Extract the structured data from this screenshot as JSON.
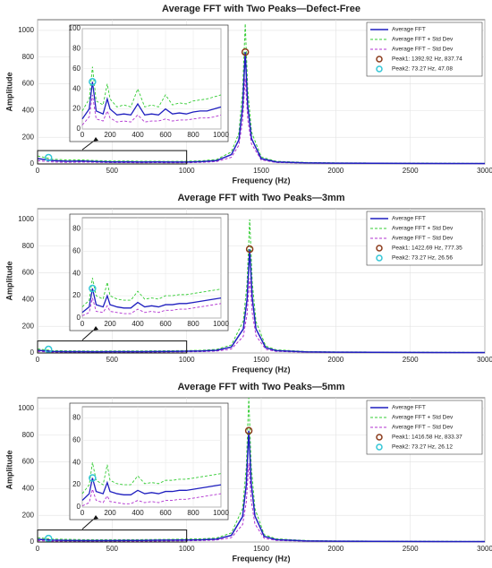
{
  "chart_data": [
    {
      "type": "line",
      "title": "Average FFT with Two Peaks—Defect-Free",
      "xlabel": "Frequency (Hz)",
      "ylabel": "Amplitude",
      "xlim": [
        0,
        3000
      ],
      "ylim": [
        0,
        1080
      ],
      "xticks": [
        0,
        500,
        1000,
        1500,
        2000,
        2500,
        3000
      ],
      "yticks": [
        0,
        200,
        400,
        600,
        800,
        1000
      ],
      "grid": true,
      "x": [
        0,
        100,
        200,
        300,
        400,
        500,
        600,
        700,
        800,
        900,
        1000,
        1100,
        1200,
        1300,
        1350,
        1375,
        1392.92,
        1410,
        1435,
        1500,
        1600,
        1800,
        2000,
        2500,
        3000
      ],
      "series": [
        {
          "name": "Average FFT",
          "color": "#1f1fbf",
          "style": "solid",
          "values": [
            40,
            25,
            20,
            22,
            18,
            15,
            16,
            14,
            15,
            14,
            14,
            18,
            25,
            70,
            180,
            420,
            837.74,
            430,
            190,
            40,
            15,
            8,
            6,
            4,
            3
          ]
        },
        {
          "name": "Average FFT + Std Dev",
          "color": "#33cc33",
          "style": "dashed",
          "values": [
            60,
            35,
            30,
            30,
            25,
            22,
            22,
            20,
            20,
            19,
            20,
            24,
            33,
            90,
            230,
            540,
            1050,
            550,
            240,
            52,
            20,
            11,
            8,
            6,
            4
          ]
        },
        {
          "name": "Average FFT − Std Dev",
          "color": "#b030d0",
          "style": "dashed",
          "values": [
            25,
            15,
            12,
            14,
            12,
            10,
            10,
            9,
            10,
            9,
            9,
            12,
            18,
            50,
            140,
            320,
            640,
            330,
            150,
            30,
            11,
            6,
            4,
            3,
            2
          ]
        }
      ],
      "peaks": [
        {
          "name": "Peak1: 1392.92 Hz, 837.74",
          "color": "#8b3a1a",
          "x": 1392.92,
          "value": 837.74
        },
        {
          "name": "Peak2: 73.27 Hz, 47.08",
          "color": "#33c6d6",
          "x": 73.27,
          "value": 47.08
        }
      ],
      "inset": {
        "xlim": [
          0,
          1000
        ],
        "ylim": [
          0,
          100
        ],
        "xticks": [
          0,
          200,
          400,
          600,
          800,
          1000
        ],
        "yticks": [
          0,
          20,
          40,
          60,
          80,
          100
        ],
        "x": [
          0,
          50,
          73.27,
          100,
          150,
          180,
          200,
          250,
          300,
          350,
          400,
          450,
          500,
          550,
          600,
          650,
          700,
          750,
          800,
          850,
          900,
          950,
          1000
        ],
        "series": [
          {
            "values": [
              10,
              20,
              47.08,
              18,
              15,
              30,
              20,
              14,
              15,
              14,
              25,
              14,
              15,
              14,
              20,
              15,
              16,
              15,
              17,
              18,
              18,
              20,
              22
            ]
          },
          {
            "values": [
              18,
              30,
              62,
              28,
              24,
              45,
              30,
              22,
              24,
              22,
              40,
              22,
              24,
              22,
              34,
              24,
              26,
              25,
              28,
              29,
              30,
              32,
              34
            ]
          },
          {
            "values": [
              4,
              12,
              34,
              10,
              8,
              18,
              11,
              7,
              8,
              7,
              14,
              7,
              8,
              8,
              10,
              8,
              9,
              9,
              10,
              11,
              11,
              12,
              14
            ]
          }
        ]
      }
    },
    {
      "type": "line",
      "title": "Average FFT with Two Peaks—3mm",
      "xlabel": "Frequency (Hz)",
      "ylabel": "Amplitude",
      "xlim": [
        0,
        3000
      ],
      "ylim": [
        0,
        1080
      ],
      "xticks": [
        0,
        500,
        1000,
        1500,
        2000,
        2500,
        3000
      ],
      "yticks": [
        0,
        200,
        400,
        600,
        800,
        1000
      ],
      "grid": true,
      "x": [
        0,
        100,
        200,
        300,
        400,
        500,
        600,
        700,
        800,
        900,
        1000,
        1100,
        1200,
        1300,
        1380,
        1405,
        1422.69,
        1440,
        1465,
        1530,
        1600,
        1800,
        2000,
        2500,
        3000
      ],
      "series": [
        {
          "name": "Average FFT",
          "color": "#1f1fbf",
          "style": "solid",
          "values": [
            20,
            12,
            10,
            10,
            9,
            10,
            10,
            10,
            11,
            12,
            13,
            15,
            20,
            45,
            180,
            400,
            777.35,
            410,
            180,
            40,
            18,
            8,
            6,
            4,
            3
          ]
        },
        {
          "name": "Average FFT + Std Dev",
          "color": "#33cc33",
          "style": "dashed",
          "values": [
            30,
            18,
            16,
            15,
            14,
            15,
            15,
            15,
            16,
            17,
            18,
            20,
            27,
            60,
            240,
            520,
            1000,
            530,
            235,
            52,
            24,
            11,
            8,
            6,
            4
          ]
        },
        {
          "name": "Average FFT − Std Dev",
          "color": "#b030d0",
          "style": "dashed",
          "values": [
            12,
            7,
            6,
            6,
            5,
            6,
            6,
            6,
            7,
            8,
            9,
            10,
            14,
            30,
            125,
            290,
            560,
            300,
            130,
            28,
            12,
            5,
            4,
            3,
            2
          ]
        }
      ],
      "peaks": [
        {
          "name": "Peak1: 1422.69 Hz, 777.35",
          "color": "#8b3a1a",
          "x": 1422.69,
          "value": 777.35
        },
        {
          "name": "Peak2: 73.27 Hz, 26.56",
          "color": "#33c6d6",
          "x": 73.27,
          "value": 26.56
        }
      ],
      "inset": {
        "xlim": [
          0,
          1000
        ],
        "ylim": [
          0,
          90
        ],
        "xticks": [
          0,
          200,
          400,
          600,
          800,
          1000
        ],
        "yticks": [
          0,
          20,
          40,
          60,
          80
        ],
        "x": [
          0,
          50,
          73.27,
          100,
          150,
          180,
          200,
          250,
          300,
          350,
          400,
          450,
          500,
          550,
          600,
          650,
          700,
          750,
          800,
          850,
          900,
          950,
          1000
        ],
        "series": [
          {
            "values": [
              5,
              10,
              26.56,
              12,
              10,
              20,
              12,
              10,
              9,
              9,
              14,
              10,
              11,
              10,
              12,
              12,
              13,
              13,
              14,
              15,
              16,
              17,
              18
            ]
          },
          {
            "values": [
              10,
              16,
              36,
              20,
              17,
              32,
              20,
              17,
              16,
              16,
              24,
              17,
              18,
              17,
              20,
              20,
              21,
              21,
              22,
              23,
              24,
              25,
              26
            ]
          },
          {
            "values": [
              2,
              5,
              18,
              6,
              5,
              11,
              6,
              5,
              4,
              4,
              8,
              5,
              6,
              5,
              7,
              7,
              8,
              8,
              9,
              10,
              11,
              12,
              13
            ]
          }
        ]
      }
    },
    {
      "type": "line",
      "title": "Average FFT with Two Peaks—5mm",
      "xlabel": "Frequency (Hz)",
      "ylabel": "Amplitude",
      "xlim": [
        0,
        3000
      ],
      "ylim": [
        0,
        1080
      ],
      "xticks": [
        0,
        500,
        1000,
        1500,
        2000,
        2500,
        3000
      ],
      "yticks": [
        0,
        200,
        400,
        600,
        800,
        1000
      ],
      "grid": true,
      "x": [
        0,
        100,
        200,
        300,
        400,
        500,
        600,
        700,
        800,
        900,
        1000,
        1100,
        1200,
        1300,
        1375,
        1400,
        1416.58,
        1433,
        1458,
        1520,
        1600,
        1800,
        2000,
        2500,
        3000
      ],
      "series": [
        {
          "name": "Average FFT",
          "color": "#1f1fbf",
          "style": "solid",
          "values": [
            20,
            14,
            12,
            11,
            11,
            11,
            12,
            12,
            13,
            14,
            15,
            17,
            22,
            50,
            190,
            430,
            833.37,
            440,
            195,
            42,
            18,
            8,
            6,
            4,
            3
          ]
        },
        {
          "name": "Average FFT + Std Dev",
          "color": "#33cc33",
          "style": "dashed",
          "values": [
            32,
            22,
            20,
            18,
            17,
            18,
            18,
            18,
            19,
            20,
            22,
            24,
            30,
            68,
            250,
            560,
            1080,
            570,
            250,
            55,
            24,
            11,
            8,
            6,
            4
          ]
        },
        {
          "name": "Average FFT − Std Dev",
          "color": "#b030d0",
          "style": "dashed",
          "values": [
            10,
            7,
            6,
            5,
            5,
            5,
            6,
            6,
            7,
            8,
            9,
            11,
            15,
            33,
            130,
            300,
            590,
            310,
            135,
            28,
            12,
            5,
            4,
            3,
            2
          ]
        }
      ],
      "peaks": [
        {
          "name": "Peak1: 1416.58 Hz, 833.37",
          "color": "#8b3a1a",
          "x": 1416.58,
          "value": 833.37
        },
        {
          "name": "Peak2: 73.27 Hz, 26.12",
          "color": "#33c6d6",
          "x": 73.27,
          "value": 26.12
        }
      ],
      "inset": {
        "xlim": [
          0,
          1000
        ],
        "ylim": [
          0,
          90
        ],
        "xticks": [
          0,
          200,
          400,
          600,
          800,
          1000
        ],
        "yticks": [
          0,
          20,
          40,
          60,
          80
        ],
        "x": [
          0,
          50,
          73.27,
          100,
          150,
          180,
          200,
          250,
          300,
          350,
          400,
          450,
          500,
          550,
          600,
          650,
          700,
          750,
          800,
          850,
          900,
          950,
          1000
        ],
        "series": [
          {
            "values": [
              6,
              12,
              26.12,
              14,
              12,
              22,
              14,
              12,
              11,
              11,
              15,
              12,
              13,
              12,
              14,
              14,
              15,
              15,
              16,
              17,
              18,
              19,
              20
            ]
          },
          {
            "values": [
              12,
              20,
              40,
              24,
              20,
              38,
              24,
              21,
              20,
              20,
              28,
              21,
              22,
              21,
              24,
              24,
              25,
              25,
              26,
              27,
              28,
              29,
              30
            ]
          },
          {
            "values": [
              1,
              4,
              16,
              6,
              4,
              10,
              5,
              4,
              3,
              3,
              6,
              4,
              5,
              4,
              6,
              6,
              7,
              7,
              8,
              9,
              10,
              11,
              12
            ]
          }
        ]
      }
    }
  ]
}
